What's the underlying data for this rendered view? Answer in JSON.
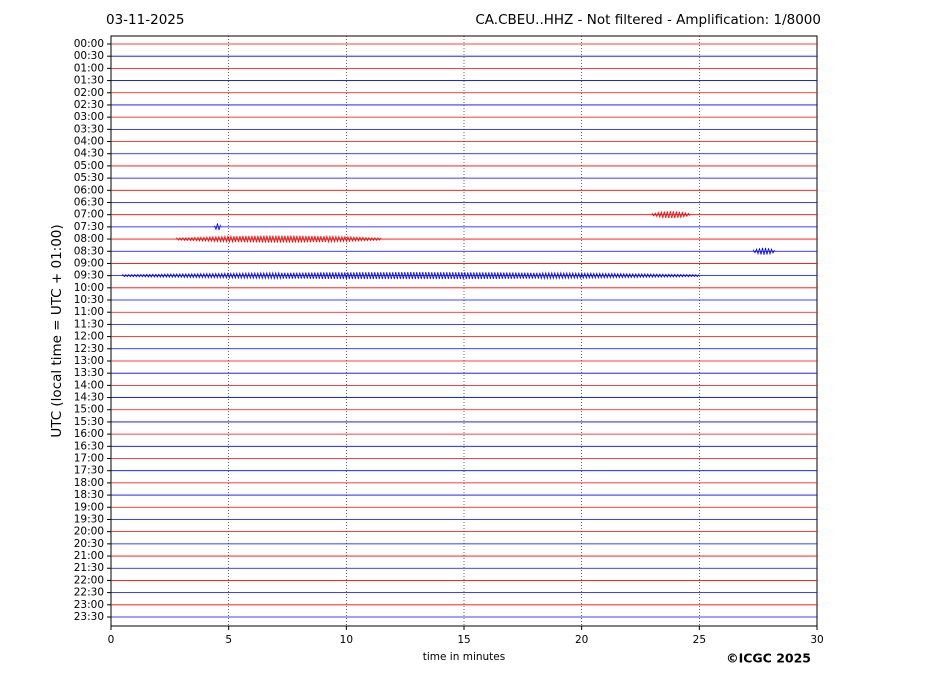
{
  "chart_data": {
    "type": "helicorder",
    "title_left": "03-11-2025",
    "title": "CA.CBEU..HHZ - Not filtered - Amplification: 1/8000",
    "ylabel": "UTC (local time = UTC + 01:00)",
    "xlabel": "time in minutes",
    "credit": "©ICGC 2025",
    "categories": [
      "00:00",
      "00:30",
      "01:00",
      "01:30",
      "02:00",
      "02:30",
      "03:00",
      "03:30",
      "04:00",
      "04:30",
      "05:00",
      "05:30",
      "06:00",
      "06:30",
      "07:00",
      "07:30",
      "08:00",
      "08:30",
      "09:00",
      "09:30",
      "10:00",
      "10:30",
      "11:00",
      "11:30",
      "12:00",
      "12:30",
      "13:00",
      "13:30",
      "14:00",
      "14:30",
      "15:00",
      "15:30",
      "16:00",
      "16:30",
      "17:00",
      "17:30",
      "18:00",
      "18:30",
      "19:00",
      "19:30",
      "20:00",
      "20:30",
      "21:00",
      "21:30",
      "22:00",
      "22:30",
      "23:00",
      "23:30"
    ],
    "colors": [
      "#ff0000",
      "#0000ff"
    ],
    "xlim": [
      0,
      30
    ],
    "xticks": [
      0,
      5,
      10,
      15,
      20,
      25,
      30
    ],
    "grid": true,
    "events": [
      {
        "row": 14,
        "start": 23.0,
        "end": 24.6
      },
      {
        "row": 15,
        "start": 4.4,
        "end": 4.7
      },
      {
        "row": 16,
        "start": 2.8,
        "end": 11.5
      },
      {
        "row": 17,
        "start": 27.3,
        "end": 28.2
      },
      {
        "row": 19,
        "start": 0.5,
        "end": 25.0
      }
    ]
  }
}
